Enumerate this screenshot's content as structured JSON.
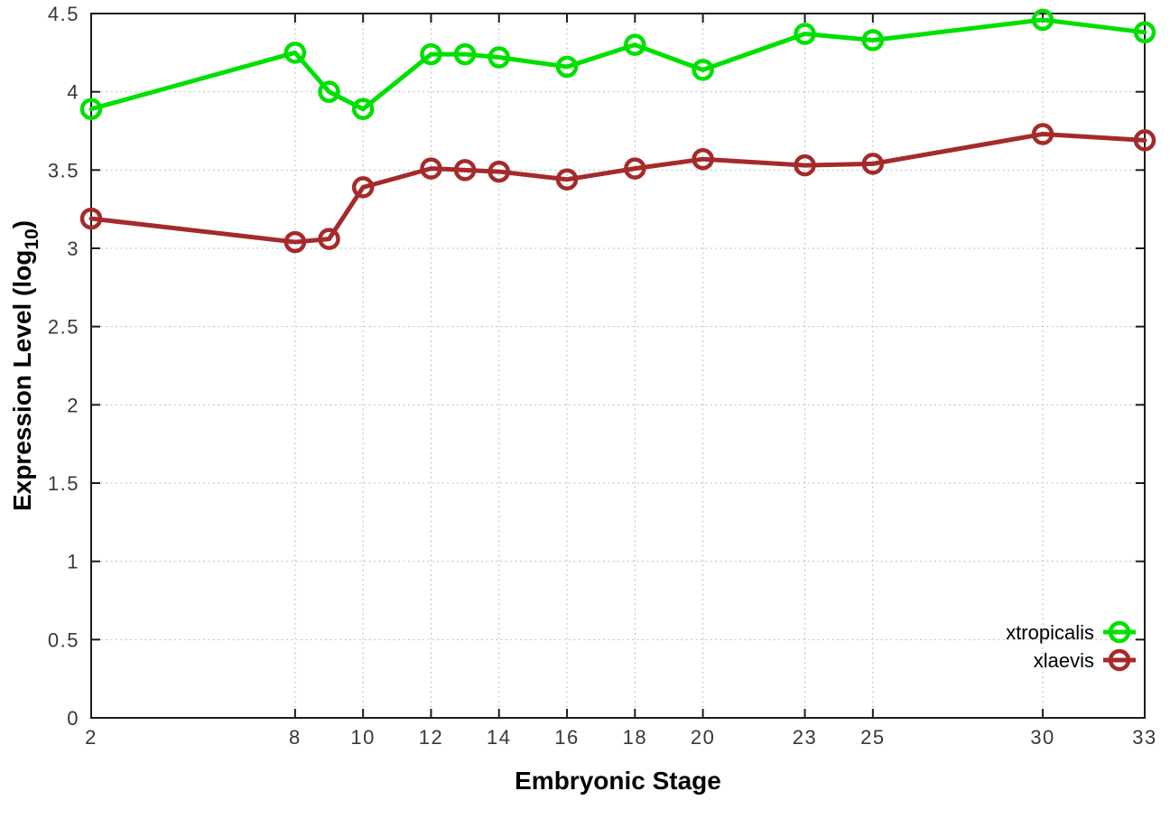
{
  "chart_data": {
    "type": "line",
    "title": "",
    "xlabel": "Embryonic Stage",
    "ylabel": "Expression Level (log10)",
    "ylabel_parts": {
      "pre": "Expression Level (log",
      "sub": "10",
      "post": ")"
    },
    "x": [
      2,
      8,
      9,
      10,
      12,
      13,
      14,
      16,
      18,
      20,
      23,
      25,
      30,
      33
    ],
    "series": [
      {
        "name": "xtropicalis",
        "color": "#00e000",
        "values": [
          3.89,
          4.25,
          4.0,
          3.89,
          4.24,
          4.24,
          4.22,
          4.16,
          4.3,
          4.14,
          4.37,
          4.33,
          4.46,
          4.38
        ]
      },
      {
        "name": "xlaevis",
        "color": "#a52a2a",
        "values": [
          3.19,
          3.04,
          3.06,
          3.39,
          3.51,
          3.5,
          3.49,
          3.44,
          3.51,
          3.57,
          3.53,
          3.54,
          3.73,
          3.69
        ]
      }
    ],
    "xlim": [
      2,
      33
    ],
    "ylim": [
      0,
      4.5
    ],
    "xticks": [
      2,
      8,
      10,
      12,
      14,
      16,
      18,
      20,
      23,
      25,
      30,
      33
    ],
    "xtick_labels": [
      "2",
      "8",
      "10",
      "12",
      "14",
      "16",
      "18",
      "20",
      "23",
      "25",
      "30",
      "33"
    ],
    "yticks": [
      0,
      0.5,
      1,
      1.5,
      2,
      2.5,
      3,
      3.5,
      4,
      4.5
    ],
    "ytick_labels": [
      "0",
      "0.5",
      "1",
      "1.5",
      "2",
      "2.5",
      "3",
      "3.5",
      "4",
      "4.5"
    ],
    "grid": true,
    "marker": "open-circle",
    "legend": {
      "position": "inside-bottom-right",
      "entries": [
        "xtropicalis",
        "xlaevis"
      ]
    },
    "colors": {
      "grid": "#b8b8b8",
      "border": "#1c1c1c",
      "tick_label": "#383838",
      "axis_title": "#000000",
      "background": "#ffffff"
    }
  }
}
